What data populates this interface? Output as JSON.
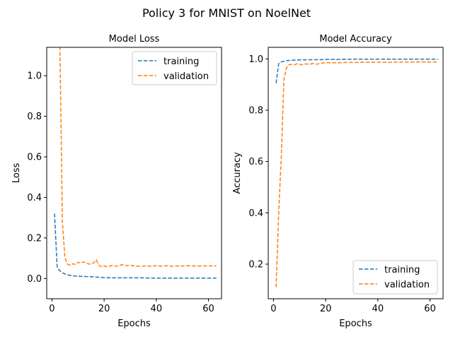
{
  "figure": {
    "title": "Policy 3 for MNIST on NoelNet"
  },
  "colors": {
    "training": "#1f77b4",
    "validation": "#ff7f0e"
  },
  "chart_data": [
    {
      "type": "line",
      "title": "Model Loss",
      "xlabel": "Epochs",
      "ylabel": "Loss",
      "xlim": [
        -2,
        65
      ],
      "ylim": [
        -0.1,
        1.14
      ],
      "xticks": [
        0,
        20,
        40,
        60
      ],
      "yticks": [
        0.0,
        0.2,
        0.4,
        0.6,
        0.8,
        1.0
      ],
      "ytick_labels": [
        "0.0",
        "0.2",
        "0.4",
        "0.6",
        "0.8",
        "1.0"
      ],
      "legend": "top-right",
      "grid": false,
      "series": [
        {
          "name": "training",
          "color": "#1f77b4",
          "style": "dashed",
          "x": [
            1,
            2,
            3,
            4,
            5,
            6,
            7,
            8,
            10,
            12,
            14,
            16,
            18,
            20,
            25,
            30,
            35,
            40,
            45,
            50,
            55,
            60,
            63
          ],
          "y": [
            0.32,
            0.055,
            0.038,
            0.028,
            0.022,
            0.018,
            0.015,
            0.013,
            0.011,
            0.01,
            0.009,
            0.008,
            0.006,
            0.004,
            0.003,
            0.003,
            0.003,
            0.002,
            0.002,
            0.002,
            0.002,
            0.002,
            0.002
          ]
        },
        {
          "name": "validation",
          "color": "#ff7f0e",
          "style": "dashed",
          "x": [
            3,
            4,
            5,
            6,
            7,
            8,
            9,
            10,
            11,
            12,
            13,
            14,
            15,
            16,
            17,
            18,
            19,
            20,
            21,
            22,
            23,
            24,
            25,
            26,
            27,
            28,
            30,
            32,
            34,
            36,
            38,
            40,
            42,
            44,
            46,
            48,
            50,
            52,
            54,
            56,
            58,
            60,
            63
          ],
          "y": [
            1.2,
            0.28,
            0.1,
            0.07,
            0.065,
            0.072,
            0.07,
            0.08,
            0.075,
            0.082,
            0.076,
            0.072,
            0.07,
            0.078,
            0.092,
            0.065,
            0.058,
            0.062,
            0.058,
            0.06,
            0.064,
            0.06,
            0.062,
            0.065,
            0.068,
            0.064,
            0.065,
            0.062,
            0.06,
            0.062,
            0.06,
            0.063,
            0.061,
            0.063,
            0.06,
            0.062,
            0.061,
            0.063,
            0.062,
            0.061,
            0.062,
            0.062,
            0.062
          ]
        }
      ]
    },
    {
      "type": "line",
      "title": "Model Accuracy",
      "xlabel": "Epochs",
      "ylabel": "Accuracy",
      "xlim": [
        -2,
        65
      ],
      "ylim": [
        0.065,
        1.045
      ],
      "xticks": [
        0,
        20,
        40,
        60
      ],
      "yticks": [
        0.2,
        0.4,
        0.6,
        0.8,
        1.0
      ],
      "ytick_labels": [
        "0.2",
        "0.4",
        "0.6",
        "0.8",
        "1.0"
      ],
      "legend": "bottom-right",
      "grid": false,
      "series": [
        {
          "name": "training",
          "color": "#1f77b4",
          "style": "dashed",
          "x": [
            1,
            2,
            3,
            4,
            5,
            6,
            8,
            10,
            12,
            15,
            18,
            20,
            25,
            30,
            35,
            40,
            45,
            50,
            55,
            60,
            63
          ],
          "y": [
            0.905,
            0.982,
            0.988,
            0.991,
            0.993,
            0.994,
            0.995,
            0.996,
            0.996,
            0.997,
            0.997,
            0.998,
            0.998,
            0.999,
            0.999,
            0.999,
            0.999,
            0.999,
            0.999,
            0.999,
            0.999
          ]
        },
        {
          "name": "validation",
          "color": "#ff7f0e",
          "style": "dashed",
          "x": [
            1,
            2,
            3,
            4,
            5,
            6,
            7,
            8,
            9,
            10,
            11,
            12,
            13,
            14,
            15,
            16,
            17,
            18,
            19,
            20,
            22,
            24,
            26,
            28,
            30,
            32,
            34,
            36,
            38,
            40,
            42,
            44,
            46,
            48,
            50,
            52,
            54,
            56,
            58,
            60,
            63
          ],
          "y": [
            0.11,
            0.4,
            0.62,
            0.92,
            0.965,
            0.978,
            0.978,
            0.977,
            0.981,
            0.979,
            0.977,
            0.98,
            0.98,
            0.979,
            0.982,
            0.979,
            0.98,
            0.983,
            0.984,
            0.985,
            0.985,
            0.985,
            0.985,
            0.986,
            0.986,
            0.986,
            0.987,
            0.987,
            0.987,
            0.987,
            0.987,
            0.987,
            0.987,
            0.988,
            0.988,
            0.988,
            0.988,
            0.988,
            0.988,
            0.988,
            0.988
          ]
        }
      ]
    }
  ]
}
